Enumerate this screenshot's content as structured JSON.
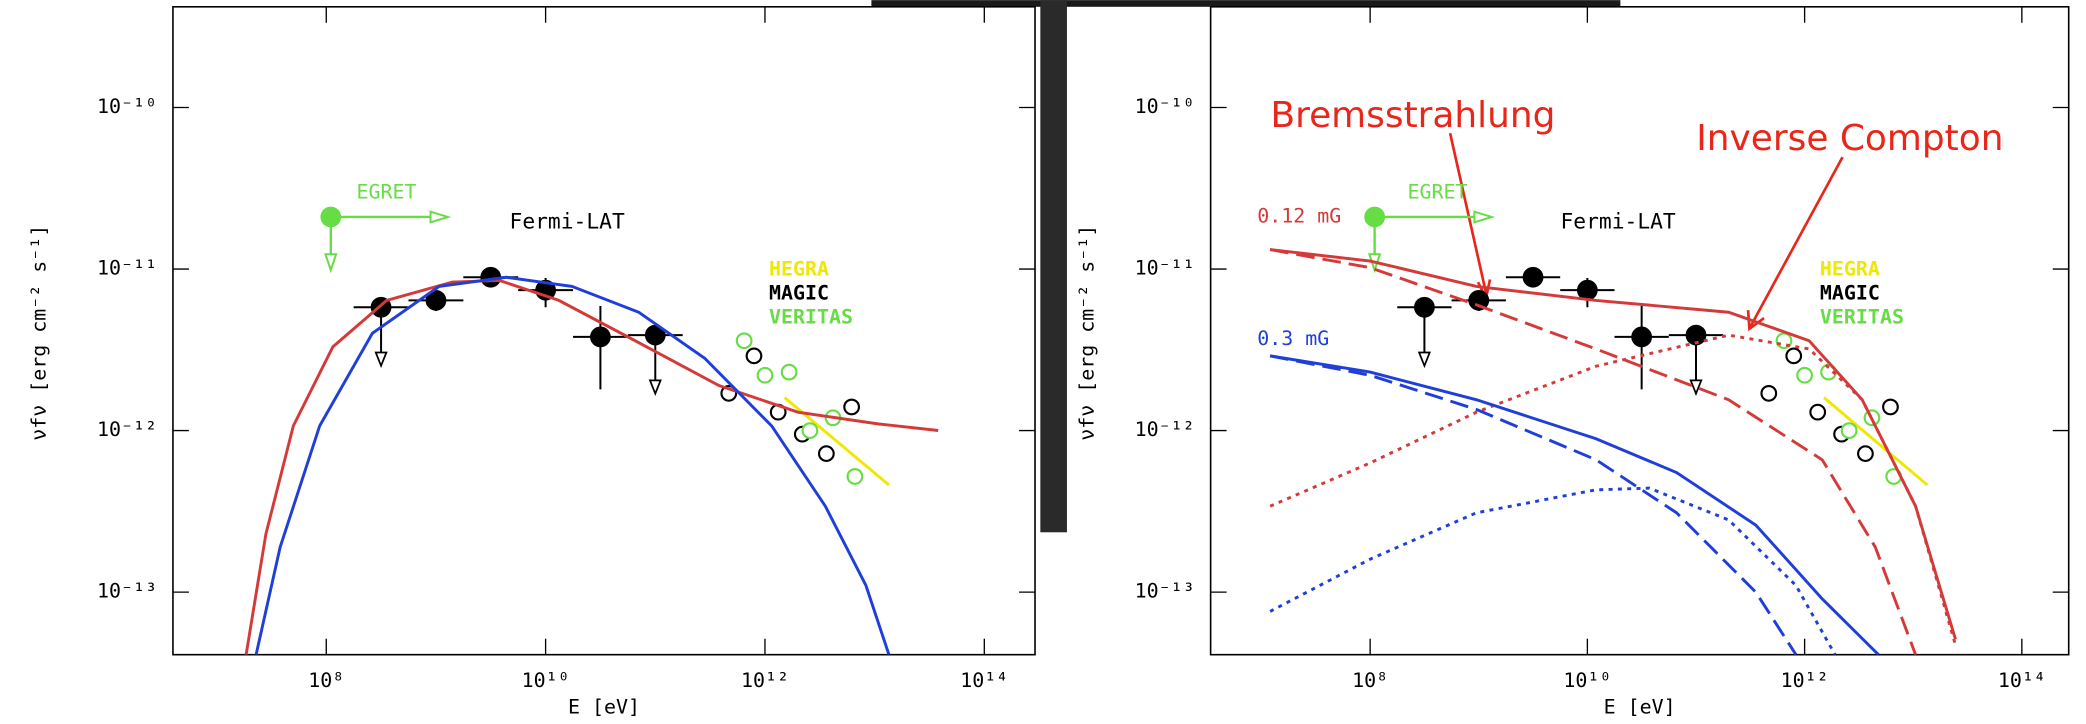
{
  "chart_data": [
    {
      "type": "line",
      "x_label": "E [eV]",
      "y_label": "νfν [erg cm⁻² s⁻¹]",
      "log_x": true,
      "log_y": true,
      "xlim": [
        4000000.0,
        290000000000000.0
      ],
      "ylim": [
        4.1e-14,
        4.2e-10
      ],
      "xticks": [
        {
          "value": 100000000.0,
          "label": "10⁸"
        },
        {
          "value": 10000000000.0,
          "label": "10¹⁰"
        },
        {
          "value": 1000000000000.0,
          "label": "10¹²"
        },
        {
          "value": 100000000000000.0,
          "label": "10¹⁴"
        }
      ],
      "yticks": [
        {
          "value": 1e-13,
          "label": "10⁻¹³"
        },
        {
          "value": 1e-12,
          "label": "10⁻¹²"
        },
        {
          "value": 1e-11,
          "label": "10⁻¹¹"
        },
        {
          "value": 1e-10,
          "label": "10⁻¹⁰"
        }
      ],
      "series": [
        {
          "name": "Fermi-LAT",
          "color": "#000000",
          "marker": "filled",
          "x": [
            316000000.0,
            1000000000.0,
            3160000000.0,
            10000000000.0,
            31600000000.0,
            100000000000.0
          ],
          "values": [
            5.8e-12,
            6.4e-12,
            8.9e-12,
            7.4e-12,
            3.8e-12,
            3.9e-12
          ],
          "ylow": [
            5e-12,
            5.5e-12,
            7.8e-12,
            5.8e-12,
            1.8e-12,
            3.4e-12
          ],
          "yhigh": [
            6.5e-12,
            7.3e-12,
            1e-11,
            8.8e-12,
            5.9e-12,
            4.3e-12
          ],
          "upper_limit": [
            true,
            false,
            false,
            false,
            false,
            true
          ]
        },
        {
          "name": "EGRET",
          "color": "#66dd44",
          "marker": "filled",
          "limit": true,
          "x": [
            110000000.0
          ],
          "values": [
            2.1e-11
          ]
        },
        {
          "name": "HEGRA",
          "color": "#f0e800",
          "line_style": "solid",
          "x": [
            1510000000000.0,
            13500000000000.0
          ],
          "values": [
            1.6e-12,
            4.6e-13
          ]
        },
        {
          "name": "MAGIC",
          "color": "#000000",
          "marker": "open",
          "x": [
            468000000000.0,
            794000000000.0,
            1320000000000.0,
            2190000000000.0,
            3630000000000.0,
            6170000000000.0
          ],
          "values": [
            1.7e-12,
            2.9e-12,
            1.3e-12,
            9.5e-13,
            7.2e-13,
            1.4e-12
          ]
        },
        {
          "name": "VERITAS",
          "color": "#66dd44",
          "marker": "open",
          "x": [
            646000000000.0,
            1000000000000.0,
            1660000000000.0,
            2570000000000.0,
            4170000000000.0,
            6610000000000.0
          ],
          "values": [
            3.6e-12,
            2.2e-12,
            2.3e-12,
            1e-12,
            1.2e-12,
            5.2e-13
          ]
        },
        {
          "color": "#d43a3a",
          "line_style": "solid",
          "x": [
            18600000.0,
            28200000.0,
            50100000.0,
            115000000.0,
            355000000.0,
            1410000000.0,
            3800000000.0,
            13200000000.0,
            70800000000.0,
            380000000000.0,
            2000000000000.0,
            10700000000000.0,
            38000000000000.0
          ],
          "values": [
            4.1e-14,
            2.3e-13,
            1.07e-12,
            3.3e-12,
            6.4e-12,
            8.3e-12,
            8.5e-12,
            6.4e-12,
            3.5e-12,
            1.9e-12,
            1.3e-12,
            1.1e-12,
            1e-12
          ]
        },
        {
          "color": "#1f3fd8",
          "line_style": "solid",
          "x": [
            22900000.0,
            38000000.0,
            87100000.0,
            263000000.0,
            1070000000.0,
            4370000000.0,
            17400000000.0,
            70800000000.0,
            282000000000.0,
            1150000000000.0,
            3550000000000.0,
            8320000000000.0,
            13500000000000.0
          ],
          "values": [
            4.1e-14,
            1.9e-13,
            1.07e-12,
            4e-12,
            7.8e-12,
            8.9e-12,
            7.8e-12,
            5.4e-12,
            2.8e-12,
            1.07e-12,
            3.4e-13,
            1.1e-13,
            4.1e-14
          ]
        }
      ]
    },
    {
      "type": "line",
      "x_label": "E [eV]",
      "y_label": "νfν [erg cm⁻² s⁻¹]",
      "log_x": true,
      "log_y": true,
      "xlim": [
        3400000.0,
        270000000000000.0
      ],
      "ylim": [
        4.1e-14,
        4.2e-10
      ],
      "xticks": [
        {
          "value": 100000000.0,
          "label": "10⁸"
        },
        {
          "value": 10000000000.0,
          "label": "10¹⁰"
        },
        {
          "value": 1000000000000.0,
          "label": "10¹²"
        },
        {
          "value": 100000000000000.0,
          "label": "10¹⁴"
        }
      ],
      "yticks": [
        {
          "value": 1e-13,
          "label": "10⁻¹³"
        },
        {
          "value": 1e-12,
          "label": "10⁻¹²"
        },
        {
          "value": 1e-11,
          "label": "10⁻¹¹"
        },
        {
          "value": 1e-10,
          "label": "10⁻¹⁰"
        }
      ],
      "annotations": [
        {
          "text": "Bremsstrahlung",
          "color": "#e8261a"
        },
        {
          "text": "Inverse Compton",
          "color": "#e8261a"
        }
      ],
      "series": [
        {
          "name": "Fermi-LAT",
          "color": "#000000",
          "marker": "filled",
          "x": [
            316000000.0,
            1000000000.0,
            3160000000.0,
            10000000000.0,
            31600000000.0,
            100000000000.0
          ],
          "values": [
            5.8e-12,
            6.4e-12,
            8.9e-12,
            7.4e-12,
            3.8e-12,
            3.9e-12
          ],
          "ylow": [
            5e-12,
            5.5e-12,
            7.8e-12,
            5.8e-12,
            1.8e-12,
            3.4e-12
          ],
          "yhigh": [
            6.5e-12,
            7.3e-12,
            1e-11,
            8.8e-12,
            5.9e-12,
            4.3e-12
          ],
          "upper_limit": [
            true,
            false,
            false,
            false,
            false,
            true
          ]
        },
        {
          "name": "EGRET",
          "color": "#66dd44",
          "marker": "filled",
          "limit": true,
          "x": [
            110000000.0
          ],
          "values": [
            2.1e-11
          ]
        },
        {
          "name": "HEGRA",
          "color": "#f0e800",
          "line_style": "solid",
          "x": [
            1510000000000.0,
            13500000000000.0
          ],
          "values": [
            1.6e-12,
            4.6e-13
          ]
        },
        {
          "name": "MAGIC",
          "color": "#000000",
          "marker": "open",
          "x": [
            468000000000.0,
            794000000000.0,
            1320000000000.0,
            2190000000000.0,
            3630000000000.0,
            6170000000000.0
          ],
          "values": [
            1.7e-12,
            2.9e-12,
            1.3e-12,
            9.5e-13,
            7.2e-13,
            1.4e-12
          ]
        },
        {
          "name": "VERITAS",
          "color": "#66dd44",
          "marker": "open",
          "x": [
            646000000000.0,
            1000000000000.0,
            1660000000000.0,
            2570000000000.0,
            4170000000000.0,
            6610000000000.0
          ],
          "values": [
            3.6e-12,
            2.2e-12,
            2.3e-12,
            1e-12,
            1.2e-12,
            5.2e-13
          ]
        },
        {
          "name": "0.12 mG",
          "color": "#d43a3a",
          "line_style": "solid",
          "x": [
            12000000.0,
            100000000.0,
            955000000.0,
            12000000000.0,
            200000000000.0,
            1100000000000.0,
            3390000000000.0,
            10500000000000.0,
            24500000000000.0
          ],
          "values": [
            1.32e-11,
            1.12e-11,
            7.8e-12,
            6.4e-12,
            5.4e-12,
            3.6e-12,
            1.55e-12,
            3.4e-13,
            5.1e-14
          ]
        },
        {
          "color": "#d43a3a",
          "line_style": "dashed",
          "x": [
            12000000.0,
            100000000.0,
            955000000.0,
            12000000000.0,
            200000000000.0,
            1450000000000.0,
            4470000000000.0,
            10500000000000.0
          ],
          "values": [
            1.32e-11,
            1.02e-11,
            6e-12,
            3.2e-12,
            1.55e-12,
            6.6e-13,
            1.9e-13,
            4.1e-14
          ]
        },
        {
          "color": "#d43a3a",
          "line_style": "dotted",
          "x": [
            12000000.0,
            100000000.0,
            955000000.0,
            12000000000.0,
            200000000000.0,
            1100000000000.0,
            3390000000000.0,
            10500000000000.0,
            24500000000000.0
          ],
          "values": [
            3.4e-13,
            6.3e-13,
            1.3e-12,
            2.5e-12,
            3.9e-12,
            3.2e-12,
            1.55e-12,
            3.4e-13,
            4.7e-14
          ]
        },
        {
          "name": "0.3 mG",
          "color": "#1f3fd8",
          "line_style": "solid",
          "x": [
            12000000.0,
            100000000.0,
            955000000.0,
            12000000000.0,
            66100000000.0,
            355000000000.0,
            1450000000000.0,
            4790000000000.0
          ],
          "values": [
            2.9e-12,
            2.3e-12,
            1.55e-12,
            8.9e-13,
            5.5e-13,
            2.6e-13,
            9.1e-14,
            4.1e-14
          ]
        },
        {
          "color": "#1f3fd8",
          "line_style": "dashed",
          "x": [
            12000000.0,
            100000000.0,
            955000000.0,
            12000000000.0,
            66100000000.0,
            355000000000.0,
            832000000000.0
          ],
          "values": [
            2.9e-12,
            2.2e-12,
            1.35e-12,
            6.6e-13,
            3.1e-13,
            1e-13,
            4.1e-14
          ]
        },
        {
          "color": "#1f3fd8",
          "line_style": "dotted",
          "x": [
            12000000.0,
            100000000.0,
            955000000.0,
            12000000000.0,
            37200000000.0,
            200000000000.0,
            832000000000.0,
            1910000000000.0
          ],
          "values": [
            7.6e-14,
            1.6e-13,
            3.1e-13,
            4.3e-13,
            4.4e-13,
            2.8e-13,
            1.1e-13,
            4.1e-14
          ]
        }
      ]
    }
  ]
}
